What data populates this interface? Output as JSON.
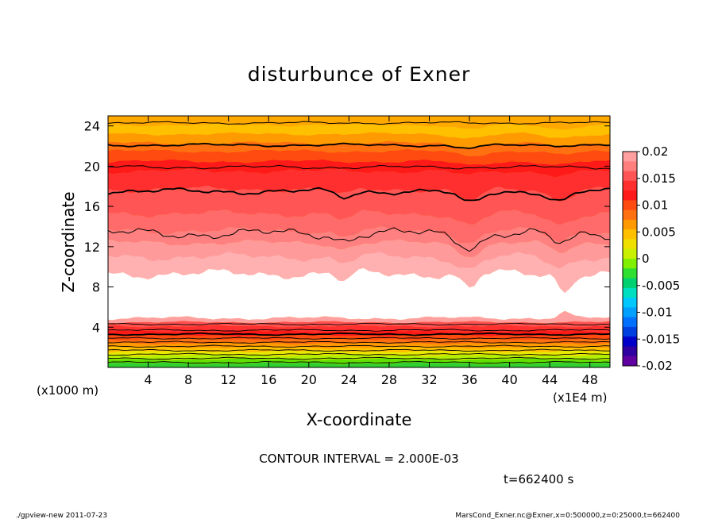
{
  "chart_data": {
    "type": "contour",
    "title": "disturbunce of Exner",
    "xlabel": "X-coordinate",
    "ylabel": "Z-coordinate",
    "x_units": "(x1E4 m)",
    "y_units": "(x1000 m)",
    "x_ticks": [
      4,
      8,
      12,
      16,
      20,
      24,
      28,
      32,
      36,
      40,
      44,
      48
    ],
    "y_ticks": [
      4,
      8,
      12,
      16,
      20,
      24
    ],
    "xlim": [
      0,
      50
    ],
    "ylim": [
      0,
      25
    ],
    "colorbar": {
      "labels": [
        "0.02",
        "0.015",
        "0.01",
        "0.005",
        "0",
        "-0.005",
        "-0.01",
        "-0.015",
        "-0.02"
      ],
      "levels": [
        0.02,
        0.015,
        0.01,
        0.005,
        0,
        -0.005,
        -0.01,
        -0.015,
        -0.02
      ],
      "colors": [
        "#ff9f9f",
        "#ff7f7f",
        "#ff5555",
        "#ff2f2f",
        "#ff1a1a",
        "#ff4a10",
        "#ff7010",
        "#ff9a00",
        "#ffc000",
        "#f0e000",
        "#c8f000",
        "#80f000",
        "#30e030",
        "#00d070",
        "#00e0c0",
        "#00c8ff",
        "#00a0ff",
        "#0070ff",
        "#0040e0",
        "#0000c8",
        "#3000a0",
        "#6000a0"
      ]
    },
    "band_colors": [
      "#ff5555",
      "#ff2f2f",
      "#ff1a1a",
      "#ff4a10",
      "#ff7010",
      "#ff9a00",
      "#ffc000"
    ],
    "low_colors": [
      "#ff8080",
      "#ff5050",
      "#ff3030",
      "#ff1a1a",
      "#ff4a10",
      "#ff7010",
      "#ff9a00",
      "#ffc000",
      "#e8e800",
      "#b0f000",
      "#60e000",
      "#30d030"
    ],
    "contour_interval": "CONTOUR INTERVAL = 2.000E-03",
    "time": "t=662400 s"
  },
  "footer": {
    "left": "./gpview-new  2011-07-23",
    "right": "MarsCond_Exner.nc@Exner,x=0:500000,z=0:25000,t=662400"
  }
}
